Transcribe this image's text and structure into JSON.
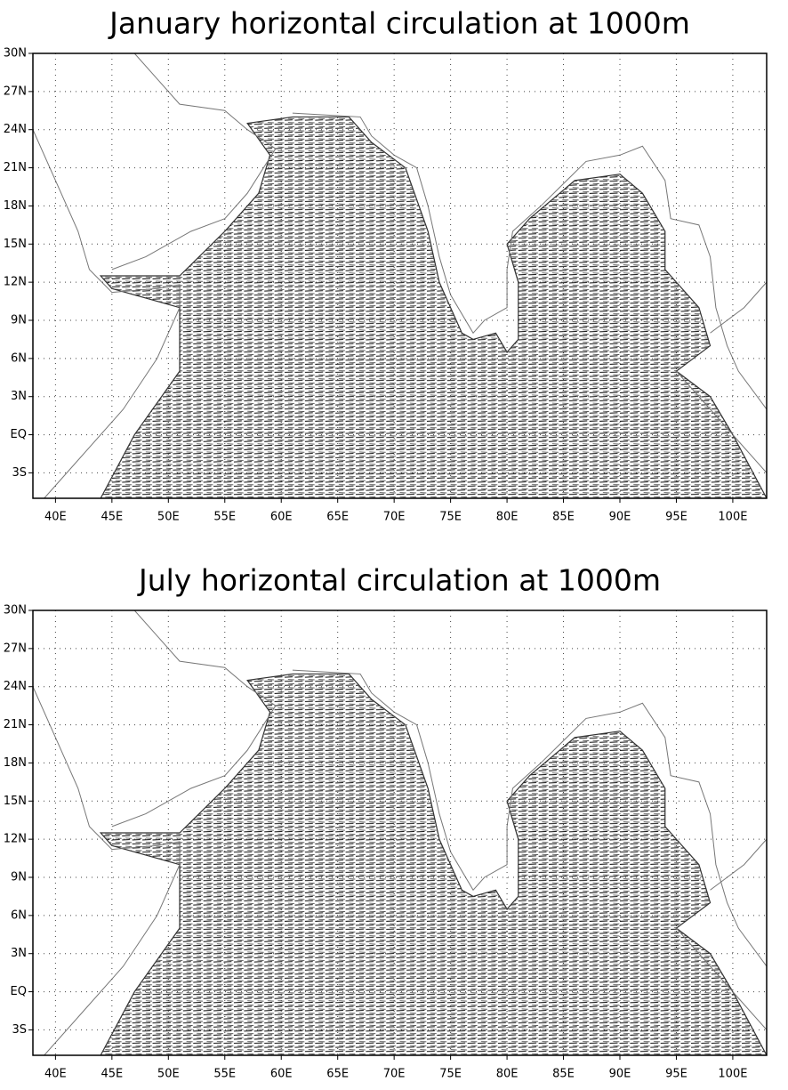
{
  "chart_data": [
    {
      "type": "vector-map",
      "title": "January horizontal circulation at 1000m",
      "xlim": [
        38,
        103
      ],
      "ylim": [
        -5,
        30
      ],
      "grid": true,
      "xticks": [
        {
          "value": 40,
          "label": "40E"
        },
        {
          "value": 45,
          "label": "45E"
        },
        {
          "value": 50,
          "label": "50E"
        },
        {
          "value": 55,
          "label": "55E"
        },
        {
          "value": 60,
          "label": "60E"
        },
        {
          "value": 65,
          "label": "65E"
        },
        {
          "value": 70,
          "label": "70E"
        },
        {
          "value": 75,
          "label": "75E"
        },
        {
          "value": 80,
          "label": "80E"
        },
        {
          "value": 85,
          "label": "85E"
        },
        {
          "value": 90,
          "label": "90E"
        },
        {
          "value": 95,
          "label": "95E"
        },
        {
          "value": 100,
          "label": "100E"
        }
      ],
      "yticks": [
        {
          "value": -3,
          "label": "3S"
        },
        {
          "value": 0,
          "label": "EQ"
        },
        {
          "value": 3,
          "label": "3N"
        },
        {
          "value": 6,
          "label": "6N"
        },
        {
          "value": 9,
          "label": "9N"
        },
        {
          "value": 12,
          "label": "12N"
        },
        {
          "value": 15,
          "label": "15N"
        },
        {
          "value": 18,
          "label": "18N"
        },
        {
          "value": 21,
          "label": "21N"
        },
        {
          "value": 24,
          "label": "24N"
        },
        {
          "value": 27,
          "label": "27N"
        },
        {
          "value": 30,
          "label": "30N"
        }
      ]
    },
    {
      "type": "vector-map",
      "title": "July horizontal circulation at 1000m",
      "xlim": [
        38,
        103
      ],
      "ylim": [
        -5,
        30
      ],
      "grid": true,
      "xticks": [
        {
          "value": 40,
          "label": "40E"
        },
        {
          "value": 45,
          "label": "45E"
        },
        {
          "value": 50,
          "label": "50E"
        },
        {
          "value": 55,
          "label": "55E"
        },
        {
          "value": 60,
          "label": "60E"
        },
        {
          "value": 65,
          "label": "65E"
        },
        {
          "value": 70,
          "label": "70E"
        },
        {
          "value": 75,
          "label": "75E"
        },
        {
          "value": 80,
          "label": "80E"
        },
        {
          "value": 85,
          "label": "85E"
        },
        {
          "value": 90,
          "label": "90E"
        },
        {
          "value": 95,
          "label": "95E"
        },
        {
          "value": 100,
          "label": "100E"
        }
      ],
      "yticks": [
        {
          "value": -3,
          "label": "3S"
        },
        {
          "value": 0,
          "label": "EQ"
        },
        {
          "value": 3,
          "label": "3N"
        },
        {
          "value": 6,
          "label": "6N"
        },
        {
          "value": 9,
          "label": "9N"
        },
        {
          "value": 12,
          "label": "12N"
        },
        {
          "value": 15,
          "label": "15N"
        },
        {
          "value": 18,
          "label": "18N"
        },
        {
          "value": 21,
          "label": "21N"
        },
        {
          "value": 24,
          "label": "24N"
        },
        {
          "value": 27,
          "label": "27N"
        },
        {
          "value": 30,
          "label": "30N"
        }
      ]
    }
  ]
}
